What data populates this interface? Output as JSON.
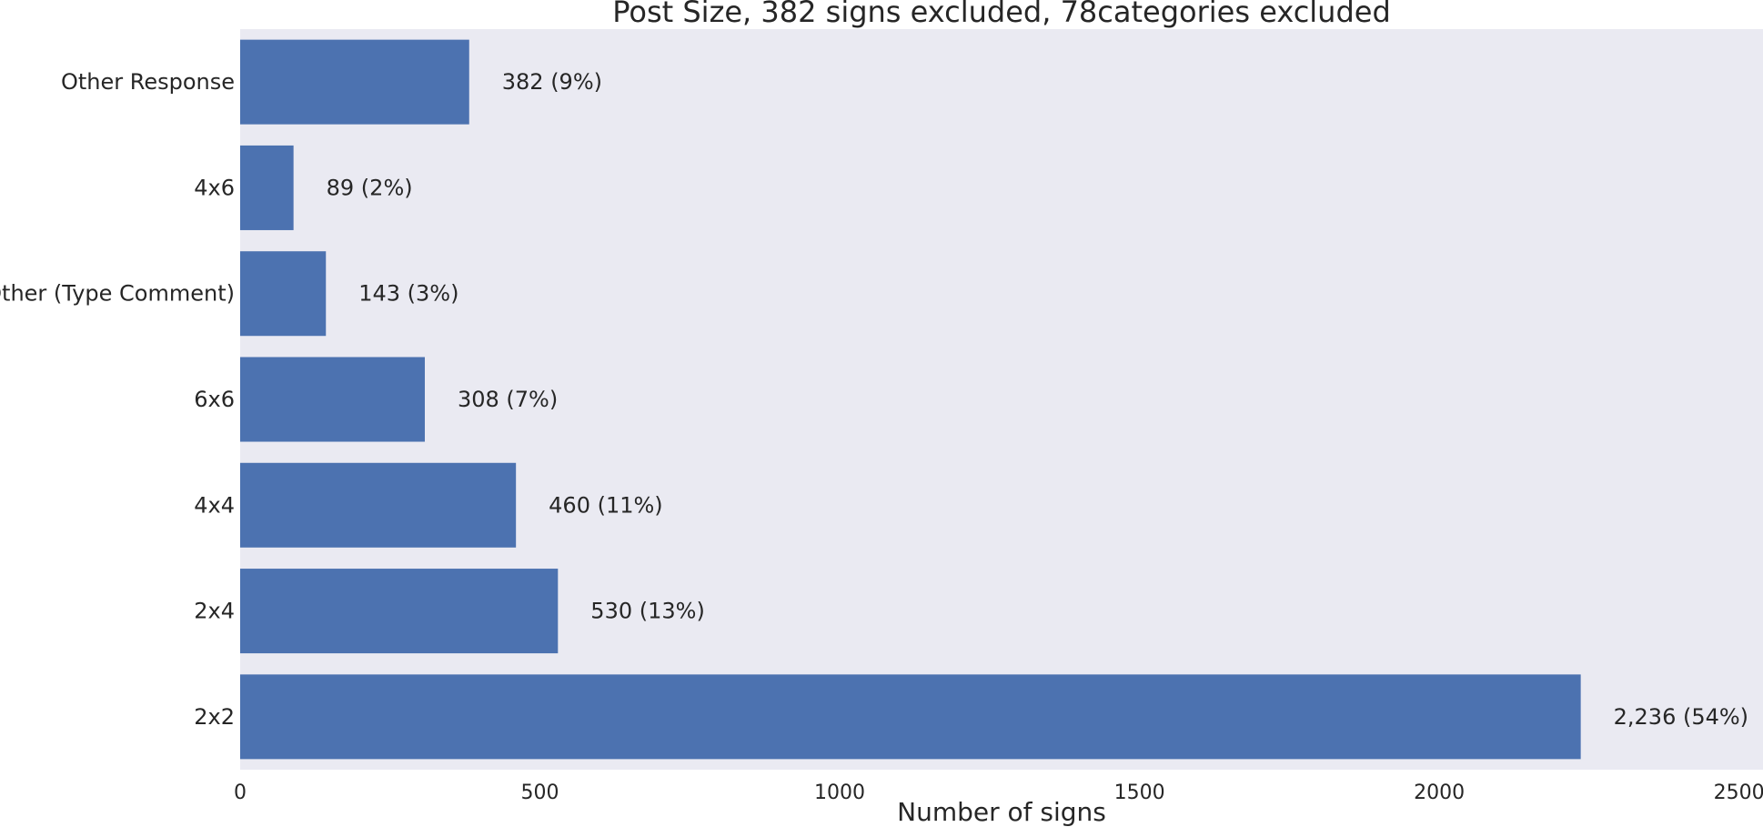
{
  "chart_data": {
    "type": "bar",
    "orientation": "horizontal",
    "title": "Post Size, 382 signs excluded, 78categories excluded",
    "xlabel": "Number of signs",
    "ylabel": "",
    "categories": [
      "Other Response",
      "4x6",
      "Other (Type Comment)",
      "6x6",
      "4x4",
      "2x4",
      "2x2"
    ],
    "values": [
      382,
      89,
      143,
      308,
      460,
      530,
      2236
    ],
    "data_labels": [
      "382 (9%)",
      "89 (2%)",
      "143 (3%)",
      "308 (7%)",
      "460 (11%)",
      "530 (13%)",
      "2,236 (54%)"
    ],
    "xlim": [
      0,
      2540
    ],
    "xticks": [
      0,
      500,
      1000,
      1500,
      2000,
      2500
    ],
    "xtick_labels": [
      "0",
      "500",
      "1000",
      "1500",
      "2000",
      "2500"
    ],
    "grid": false,
    "colors": {
      "bar": "#4c72b0",
      "plot_background": "#eaeaf2",
      "text": "#262626"
    }
  }
}
